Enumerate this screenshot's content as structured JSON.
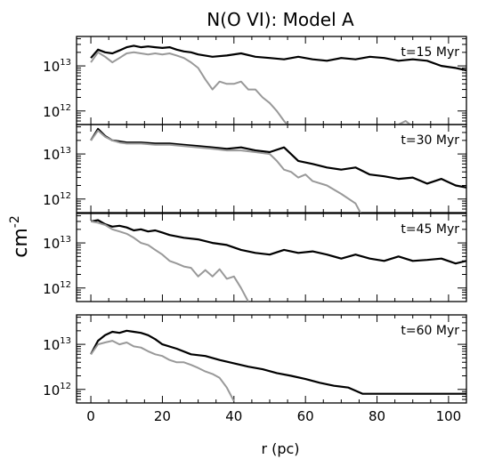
{
  "chart_data": {
    "type": "line",
    "title": "N(O VI): Model A",
    "xlabel": "r (pc)",
    "ylabel_base": "cm",
    "ylabel_exp": "-2",
    "x_range": [
      -4,
      105
    ],
    "y_log": true,
    "y_range": [
      500000000000.0,
      45000000000000.0
    ],
    "x_ticks": [
      "0",
      "20",
      "40",
      "60",
      "80",
      "100"
    ],
    "x_tick_values": [
      0,
      20,
      40,
      60,
      80,
      100
    ],
    "y_ticks": [
      {
        "base": "10",
        "exp": "12",
        "value": 1000000000000.0
      },
      {
        "base": "10",
        "exp": "13",
        "value": 10000000000000.0
      }
    ],
    "colors": {
      "total": "#000000",
      "other": "#999999"
    },
    "panels": [
      {
        "label": "t=15 Myr",
        "series": [
          {
            "color": "#000000",
            "x": [
              0,
              2,
              4,
              6,
              8,
              10,
              12,
              14,
              16,
              18,
              20,
              22,
              24,
              26,
              28,
              30,
              34,
              38,
              42,
              46,
              50,
              54,
              58,
              62,
              66,
              70,
              74,
              78,
              82,
              86,
              90,
              94,
              98,
              102,
              105
            ],
            "y": [
              15000000000000.0,
              23000000000000.0,
              20000000000000.0,
              19000000000000.0,
              22000000000000.0,
              26000000000000.0,
              28000000000000.0,
              26000000000000.0,
              27000000000000.0,
              26000000000000.0,
              25000000000000.0,
              26000000000000.0,
              23000000000000.0,
              21000000000000.0,
              20000000000000.0,
              18000000000000.0,
              16000000000000.0,
              17000000000000.0,
              19000000000000.0,
              16000000000000.0,
              15000000000000.0,
              14000000000000.0,
              16000000000000.0,
              14000000000000.0,
              13000000000000.0,
              15000000000000.0,
              14000000000000.0,
              16000000000000.0,
              15000000000000.0,
              13000000000000.0,
              14000000000000.0,
              13000000000000.0,
              10000000000000.0,
              9000000000000.0,
              8000000000000.0
            ]
          },
          {
            "color": "#999999",
            "x": [
              0,
              2,
              4,
              6,
              8,
              10,
              12,
              14,
              16,
              18,
              20,
              22,
              24,
              26,
              28,
              30,
              32,
              34,
              36,
              38,
              40,
              42,
              44,
              46,
              48,
              50,
              52,
              54,
              56
            ],
            "y": [
              12000000000000.0,
              20000000000000.0,
              16000000000000.0,
              12000000000000.0,
              15000000000000.0,
              19000000000000.0,
              20000000000000.0,
              19000000000000.0,
              18000000000000.0,
              19000000000000.0,
              18000000000000.0,
              19000000000000.0,
              17000000000000.0,
              15000000000000.0,
              12000000000000.0,
              9000000000000.0,
              5000000000000.0,
              3000000000000.0,
              4500000000000.0,
              4000000000000.0,
              4000000000000.0,
              4500000000000.0,
              3000000000000.0,
              3000000000000.0,
              2000000000000.0,
              1500000000000.0,
              1000000000000.0,
              600000000000.0,
              400000000000.0
            ]
          },
          {
            "color": "#999999",
            "x": [
              86,
              88,
              90
            ],
            "y": [
              500000000000.0,
              600000000000.0,
              450000000000.0
            ]
          }
        ]
      },
      {
        "label": "t=30 Myr",
        "series": [
          {
            "color": "#000000",
            "x": [
              0,
              2,
              4,
              6,
              8,
              10,
              14,
              18,
              22,
              26,
              30,
              34,
              38,
              42,
              46,
              50,
              54,
              58,
              62,
              66,
              70,
              74,
              78,
              82,
              86,
              90,
              94,
              98,
              102,
              105
            ],
            "y": [
              20000000000000.0,
              36000000000000.0,
              25000000000000.0,
              20000000000000.0,
              19000000000000.0,
              18000000000000.0,
              18000000000000.0,
              17000000000000.0,
              17000000000000.0,
              16000000000000.0,
              15000000000000.0,
              14000000000000.0,
              13000000000000.0,
              14000000000000.0,
              12000000000000.0,
              11000000000000.0,
              14000000000000.0,
              7000000000000.0,
              6000000000000.0,
              5000000000000.0,
              4500000000000.0,
              5000000000000.0,
              3500000000000.0,
              3200000000000.0,
              2800000000000.0,
              3000000000000.0,
              2200000000000.0,
              2800000000000.0,
              2000000000000.0,
              1800000000000.0
            ]
          },
          {
            "color": "#999999",
            "x": [
              0,
              2,
              4,
              6,
              8,
              10,
              14,
              18,
              22,
              26,
              30,
              34,
              38,
              42,
              46,
              50,
              52,
              54,
              56,
              58,
              60,
              62,
              66,
              70,
              74,
              76
            ],
            "y": [
              20000000000000.0,
              33000000000000.0,
              24000000000000.0,
              20000000000000.0,
              18000000000000.0,
              17000000000000.0,
              17000000000000.0,
              16000000000000.0,
              16000000000000.0,
              15000000000000.0,
              14000000000000.0,
              13000000000000.0,
              12000000000000.0,
              12000000000000.0,
              11000000000000.0,
              10000000000000.0,
              7000000000000.0,
              4500000000000.0,
              4000000000000.0,
              3000000000000.0,
              3500000000000.0,
              2500000000000.0,
              2000000000000.0,
              1300000000000.0,
              800000000000.0,
              400000000000.0
            ]
          }
        ]
      },
      {
        "label": "t=45 Myr",
        "series": [
          {
            "color": "#000000",
            "x": [
              0,
              2,
              4,
              6,
              8,
              10,
              12,
              14,
              16,
              18,
              20,
              22,
              26,
              30,
              34,
              38,
              42,
              46,
              50,
              54,
              58,
              62,
              66,
              70,
              74,
              78,
              82,
              86,
              90,
              94,
              98,
              102,
              105
            ],
            "y": [
              30000000000000.0,
              32000000000000.0,
              26000000000000.0,
              23000000000000.0,
              24000000000000.0,
              22000000000000.0,
              19000000000000.0,
              20000000000000.0,
              18000000000000.0,
              19000000000000.0,
              17000000000000.0,
              15000000000000.0,
              13000000000000.0,
              12000000000000.0,
              10000000000000.0,
              9000000000000.0,
              7000000000000.0,
              6000000000000.0,
              5500000000000.0,
              7000000000000.0,
              6000000000000.0,
              6500000000000.0,
              5500000000000.0,
              4500000000000.0,
              5500000000000.0,
              4500000000000.0,
              4000000000000.0,
              5000000000000.0,
              4000000000000.0,
              4200000000000.0,
              4500000000000.0,
              3500000000000.0,
              4000000000000.0
            ]
          },
          {
            "color": "#999999",
            "x": [
              0,
              2,
              4,
              6,
              8,
              10,
              12,
              14,
              16,
              18,
              20,
              22,
              24,
              26,
              28,
              30,
              32,
              34,
              36,
              38,
              40,
              42,
              44
            ],
            "y": [
              30000000000000.0,
              28000000000000.0,
              25000000000000.0,
              20000000000000.0,
              18000000000000.0,
              16000000000000.0,
              13000000000000.0,
              10000000000000.0,
              9000000000000.0,
              7000000000000.0,
              5500000000000.0,
              4000000000000.0,
              3500000000000.0,
              3000000000000.0,
              2800000000000.0,
              1800000000000.0,
              2500000000000.0,
              1800000000000.0,
              2600000000000.0,
              1600000000000.0,
              1800000000000.0,
              1000000000000.0,
              500000000000.0
            ]
          }
        ]
      },
      {
        "label": "t=60 Myr",
        "series": [
          {
            "color": "#000000",
            "x": [
              0,
              2,
              4,
              6,
              8,
              10,
              12,
              14,
              16,
              18,
              20,
              24,
              28,
              32,
              36,
              40,
              44,
              48,
              52,
              56,
              60,
              64,
              68,
              72,
              76,
              78,
              80,
              90,
              100,
              105
            ],
            "y": [
              6000000000000.0,
              12000000000000.0,
              16000000000000.0,
              19000000000000.0,
              18000000000000.0,
              20000000000000.0,
              19000000000000.0,
              18000000000000.0,
              16000000000000.0,
              13000000000000.0,
              10000000000000.0,
              8000000000000.0,
              6000000000000.0,
              5500000000000.0,
              4500000000000.0,
              3800000000000.0,
              3200000000000.0,
              2800000000000.0,
              2300000000000.0,
              2000000000000.0,
              1700000000000.0,
              1400000000000.0,
              1200000000000.0,
              1100000000000.0,
              800000000000.0,
              800000000000.0,
              800000000000.0,
              800000000000.0,
              800000000000.0,
              800000000000.0
            ]
          },
          {
            "color": "#999999",
            "x": [
              0,
              2,
              4,
              6,
              8,
              10,
              12,
              14,
              16,
              18,
              20,
              22,
              24,
              26,
              28,
              30,
              32,
              34,
              36,
              38,
              40
            ],
            "y": [
              6000000000000.0,
              10000000000000.0,
              11000000000000.0,
              12000000000000.0,
              10000000000000.0,
              11000000000000.0,
              9000000000000.0,
              8500000000000.0,
              7000000000000.0,
              6000000000000.0,
              5500000000000.0,
              4500000000000.0,
              4000000000000.0,
              4000000000000.0,
              3500000000000.0,
              3000000000000.0,
              2500000000000.0,
              2200000000000.0,
              1800000000000.0,
              1100000000000.0,
              550000000000.0
            ]
          }
        ]
      }
    ]
  }
}
